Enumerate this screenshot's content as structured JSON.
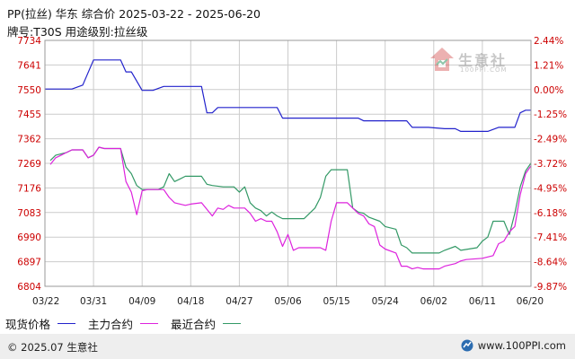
{
  "header": {
    "title": "PP(拉丝) 华东 综合价 2025-03-22 - 2025-06-20",
    "subtitle": "牌号:T30S 用途级别:拉丝级"
  },
  "legend": [
    {
      "label": "现货价格",
      "color": "#2222cc"
    },
    {
      "label": "主力合约",
      "color": "#dd22dd"
    },
    {
      "label": "最近合约",
      "color": "#339966"
    }
  ],
  "watermark": {
    "name": "生意社",
    "url": "100PPI.COM"
  },
  "footer": {
    "copyright": "© 2025.07 生意社",
    "site": "www.100PPI.com"
  },
  "colors": {
    "spot": "#2222cc",
    "main": "#dd22dd",
    "near": "#339966",
    "grid": "#cccccc",
    "footer_bg": "#eeeeee"
  },
  "chart_data": {
    "type": "line",
    "ylim": [
      6804,
      7734
    ],
    "y_ticks_left": [
      "7734",
      "7641",
      "7550",
      "7455",
      "7362",
      "7269",
      "7176",
      "7083",
      "6990",
      "6897",
      "6804"
    ],
    "y_ticks_right": [
      "2.44%",
      "1.21%",
      "0.00%",
      "-1.25%",
      "-2.49%",
      "-3.72%",
      "-4.95%",
      "-6.18%",
      "-7.41%",
      "-8.64%",
      "-9.87%"
    ],
    "x_ticks": [
      "03/22",
      "03/31",
      "04/09",
      "04/18",
      "04/27",
      "05/06",
      "05/15",
      "05/24",
      "06/02",
      "06/11",
      "06/20"
    ],
    "x_range": [
      "2025-03-22",
      "2025-06-20"
    ],
    "grid": true,
    "series": [
      {
        "name": "现货价格",
        "points": [
          [
            "2025-03-22",
            7550
          ],
          [
            "2025-03-27",
            7550
          ],
          [
            "2025-03-29",
            7565
          ],
          [
            "2025-03-31",
            7660
          ],
          [
            "2025-04-05",
            7660
          ],
          [
            "2025-04-06",
            7615
          ],
          [
            "2025-04-07",
            7615
          ],
          [
            "2025-04-09",
            7545
          ],
          [
            "2025-04-11",
            7545
          ],
          [
            "2025-04-13",
            7560
          ],
          [
            "2025-04-20",
            7560
          ],
          [
            "2025-04-21",
            7460
          ],
          [
            "2025-04-22",
            7460
          ],
          [
            "2025-04-23",
            7480
          ],
          [
            "2025-05-04",
            7480
          ],
          [
            "2025-05-05",
            7440
          ],
          [
            "2025-05-19",
            7440
          ],
          [
            "2025-05-20",
            7430
          ],
          [
            "2025-05-28",
            7430
          ],
          [
            "2025-05-29",
            7405
          ],
          [
            "2025-06-01",
            7405
          ],
          [
            "2025-06-04",
            7400
          ],
          [
            "2025-06-06",
            7400
          ],
          [
            "2025-06-07",
            7390
          ],
          [
            "2025-06-12",
            7390
          ],
          [
            "2025-06-14",
            7405
          ],
          [
            "2025-06-17",
            7405
          ],
          [
            "2025-06-18",
            7460
          ],
          [
            "2025-06-19",
            7470
          ],
          [
            "2025-06-20",
            7470
          ]
        ]
      },
      {
        "name": "主力合约",
        "points": [
          [
            "2025-03-23",
            7265
          ],
          [
            "2025-03-24",
            7290
          ],
          [
            "2025-03-25",
            7300
          ],
          [
            "2025-03-26",
            7310
          ],
          [
            "2025-03-27",
            7320
          ],
          [
            "2025-03-29",
            7320
          ],
          [
            "2025-03-30",
            7290
          ],
          [
            "2025-03-31",
            7300
          ],
          [
            "2025-04-01",
            7330
          ],
          [
            "2025-04-02",
            7325
          ],
          [
            "2025-04-05",
            7325
          ],
          [
            "2025-04-06",
            7200
          ],
          [
            "2025-04-07",
            7160
          ],
          [
            "2025-04-08",
            7075
          ],
          [
            "2025-04-09",
            7165
          ],
          [
            "2025-04-10",
            7170
          ],
          [
            "2025-04-13",
            7170
          ],
          [
            "2025-04-14",
            7140
          ],
          [
            "2025-04-15",
            7120
          ],
          [
            "2025-04-17",
            7110
          ],
          [
            "2025-04-18",
            7115
          ],
          [
            "2025-04-20",
            7120
          ],
          [
            "2025-04-22",
            7070
          ],
          [
            "2025-04-23",
            7100
          ],
          [
            "2025-04-24",
            7095
          ],
          [
            "2025-04-25",
            7110
          ],
          [
            "2025-04-26",
            7100
          ],
          [
            "2025-04-28",
            7100
          ],
          [
            "2025-04-29",
            7080
          ],
          [
            "2025-04-30",
            7050
          ],
          [
            "2025-05-01",
            7060
          ],
          [
            "2025-05-02",
            7050
          ],
          [
            "2025-05-03",
            7050
          ],
          [
            "2025-05-04",
            7010
          ],
          [
            "2025-05-05",
            6955
          ],
          [
            "2025-05-06",
            7000
          ],
          [
            "2025-05-07",
            6940
          ],
          [
            "2025-05-08",
            6950
          ],
          [
            "2025-05-12",
            6950
          ],
          [
            "2025-05-13",
            6940
          ],
          [
            "2025-05-14",
            7050
          ],
          [
            "2025-05-15",
            7120
          ],
          [
            "2025-05-17",
            7120
          ],
          [
            "2025-05-18",
            7100
          ],
          [
            "2025-05-19",
            7080
          ],
          [
            "2025-05-20",
            7070
          ],
          [
            "2025-05-21",
            7040
          ],
          [
            "2025-05-22",
            7030
          ],
          [
            "2025-05-23",
            6960
          ],
          [
            "2025-05-24",
            6945
          ],
          [
            "2025-05-26",
            6930
          ],
          [
            "2025-05-27",
            6880
          ],
          [
            "2025-05-28",
            6880
          ],
          [
            "2025-05-29",
            6870
          ],
          [
            "2025-05-30",
            6875
          ],
          [
            "2025-05-31",
            6870
          ],
          [
            "2025-06-03",
            6870
          ],
          [
            "2025-06-04",
            6880
          ],
          [
            "2025-06-06",
            6890
          ],
          [
            "2025-06-07",
            6900
          ],
          [
            "2025-06-08",
            6905
          ],
          [
            "2025-06-11",
            6910
          ],
          [
            "2025-06-13",
            6920
          ],
          [
            "2025-06-14",
            6965
          ],
          [
            "2025-06-15",
            6975
          ],
          [
            "2025-06-16",
            7010
          ],
          [
            "2025-06-17",
            7030
          ],
          [
            "2025-06-18",
            7150
          ],
          [
            "2025-06-19",
            7230
          ],
          [
            "2025-06-20",
            7260
          ]
        ]
      },
      {
        "name": "最近合约",
        "points": [
          [
            "2025-03-23",
            7280
          ],
          [
            "2025-03-24",
            7300
          ],
          [
            "2025-03-25",
            7305
          ],
          [
            "2025-03-26",
            7310
          ],
          [
            "2025-03-27",
            7320
          ],
          [
            "2025-03-29",
            7320
          ],
          [
            "2025-03-30",
            7290
          ],
          [
            "2025-03-31",
            7300
          ],
          [
            "2025-04-01",
            7330
          ],
          [
            "2025-04-02",
            7325
          ],
          [
            "2025-04-05",
            7325
          ],
          [
            "2025-04-06",
            7255
          ],
          [
            "2025-04-07",
            7230
          ],
          [
            "2025-04-08",
            7185
          ],
          [
            "2025-04-09",
            7170
          ],
          [
            "2025-04-12",
            7170
          ],
          [
            "2025-04-13",
            7180
          ],
          [
            "2025-04-14",
            7230
          ],
          [
            "2025-04-15",
            7200
          ],
          [
            "2025-04-16",
            7210
          ],
          [
            "2025-04-17",
            7220
          ],
          [
            "2025-04-20",
            7220
          ],
          [
            "2025-04-21",
            7190
          ],
          [
            "2025-04-22",
            7185
          ],
          [
            "2025-04-24",
            7180
          ],
          [
            "2025-04-26",
            7180
          ],
          [
            "2025-04-27",
            7160
          ],
          [
            "2025-04-28",
            7180
          ],
          [
            "2025-04-29",
            7120
          ],
          [
            "2025-04-30",
            7100
          ],
          [
            "2025-05-01",
            7090
          ],
          [
            "2025-05-02",
            7070
          ],
          [
            "2025-05-03",
            7085
          ],
          [
            "2025-05-04",
            7070
          ],
          [
            "2025-05-05",
            7060
          ],
          [
            "2025-05-06",
            7060
          ],
          [
            "2025-05-09",
            7060
          ],
          [
            "2025-05-10",
            7080
          ],
          [
            "2025-05-11",
            7100
          ],
          [
            "2025-05-12",
            7140
          ],
          [
            "2025-05-13",
            7220
          ],
          [
            "2025-05-14",
            7245
          ],
          [
            "2025-05-17",
            7245
          ],
          [
            "2025-05-18",
            7100
          ],
          [
            "2025-05-19",
            7085
          ],
          [
            "2025-05-20",
            7080
          ],
          [
            "2025-05-21",
            7065
          ],
          [
            "2025-05-23",
            7050
          ],
          [
            "2025-05-24",
            7030
          ],
          [
            "2025-05-26",
            7020
          ],
          [
            "2025-05-27",
            6960
          ],
          [
            "2025-05-28",
            6950
          ],
          [
            "2025-05-29",
            6930
          ],
          [
            "2025-05-30",
            6930
          ],
          [
            "2025-06-03",
            6930
          ],
          [
            "2025-06-04",
            6940
          ],
          [
            "2025-06-06",
            6955
          ],
          [
            "2025-06-07",
            6940
          ],
          [
            "2025-06-10",
            6950
          ],
          [
            "2025-06-11",
            6975
          ],
          [
            "2025-06-12",
            6990
          ],
          [
            "2025-06-13",
            7050
          ],
          [
            "2025-06-15",
            7050
          ],
          [
            "2025-06-16",
            7000
          ],
          [
            "2025-06-17",
            7080
          ],
          [
            "2025-06-18",
            7180
          ],
          [
            "2025-06-19",
            7240
          ],
          [
            "2025-06-20",
            7270
          ]
        ]
      }
    ]
  }
}
